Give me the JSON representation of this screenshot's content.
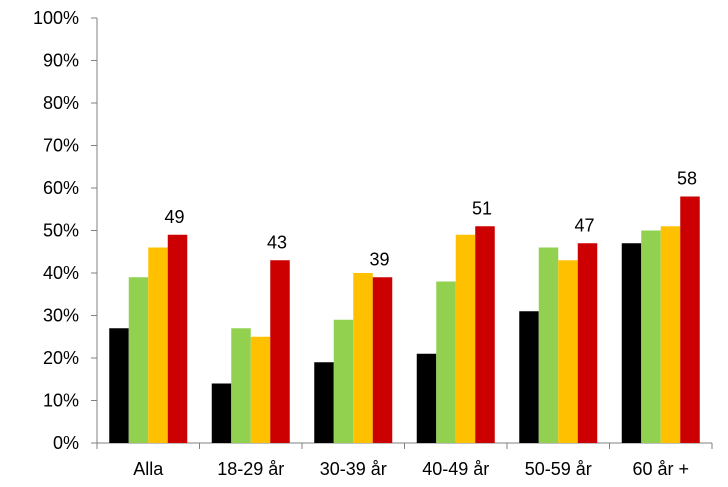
{
  "chart_data": {
    "type": "bar",
    "title": "",
    "xlabel": "",
    "ylabel": "",
    "ylim": [
      0,
      100
    ],
    "y_tick_labels": [
      "0%",
      "10%",
      "20%",
      "30%",
      "40%",
      "50%",
      "60%",
      "70%",
      "80%",
      "90%",
      "100%"
    ],
    "grid": false,
    "legend": "none",
    "categories": [
      "Alla",
      "18-29 år",
      "30-39 år",
      "40-49 år",
      "50-59 år",
      "60 år +"
    ],
    "series": [
      {
        "color": "#000000",
        "values": [
          27,
          14,
          19,
          21,
          31,
          47
        ]
      },
      {
        "color": "#92D050",
        "values": [
          39,
          27,
          29,
          38,
          46,
          50
        ]
      },
      {
        "color": "#FFC000",
        "values": [
          46,
          25,
          40,
          49,
          43,
          51
        ]
      },
      {
        "color": "#CC0000",
        "values": [
          49,
          43,
          39,
          51,
          47,
          58
        ]
      }
    ],
    "data_labels": {
      "series_index": 3,
      "values": [
        "49",
        "43",
        "39",
        "51",
        "47",
        "58"
      ]
    },
    "axis_color": "#808080"
  }
}
